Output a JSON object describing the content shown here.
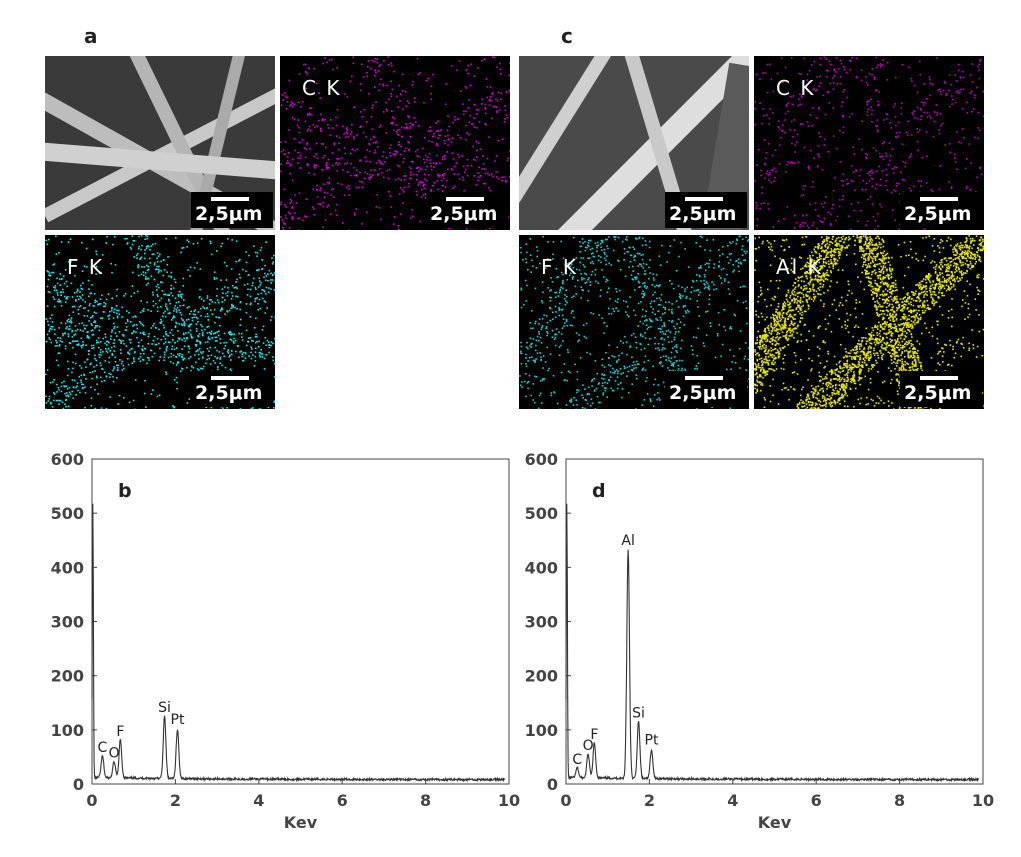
{
  "figure": {
    "panel_a": {
      "letter": "a"
    },
    "panel_c": {
      "letter": "c"
    },
    "scale_label": "2,5μm",
    "tiles_a": [
      {
        "kind": "sem",
        "label": ""
      },
      {
        "kind": "map",
        "label": "C K",
        "color": "#d400d4"
      },
      {
        "kind": "map",
        "label": "F K",
        "color": "#19e6e6"
      }
    ],
    "tiles_c": [
      {
        "kind": "sem",
        "label": ""
      },
      {
        "kind": "map",
        "label": "C K",
        "color": "#c000c0"
      },
      {
        "kind": "map",
        "label": "F K",
        "color": "#19d0d0"
      },
      {
        "kind": "map",
        "label": "Al K",
        "color": "#e6e60a"
      }
    ]
  },
  "chart_data": [
    {
      "type": "line",
      "panel": "b",
      "xlabel": "Kev",
      "ylabel": "",
      "xlim": [
        0,
        10
      ],
      "ylim": [
        0,
        600
      ],
      "xticks": [
        0,
        2,
        4,
        6,
        8,
        10
      ],
      "yticks": [
        0,
        100,
        200,
        300,
        400,
        500,
        600
      ],
      "line_color": "#333333",
      "peaks": [
        {
          "label": "C",
          "x": 0.25,
          "y": 48
        },
        {
          "label": "O",
          "x": 0.53,
          "y": 38
        },
        {
          "label": "F",
          "x": 0.68,
          "y": 78
        },
        {
          "label": "Si",
          "x": 1.74,
          "y": 122
        },
        {
          "label": "Pt",
          "x": 2.05,
          "y": 100
        }
      ],
      "baseline_peak": {
        "x": 0.02,
        "y": 505
      }
    },
    {
      "type": "line",
      "panel": "d",
      "xlabel": "Kev",
      "ylabel": "",
      "xlim": [
        0,
        10
      ],
      "ylim": [
        0,
        600
      ],
      "xticks": [
        0,
        2,
        4,
        6,
        8,
        10
      ],
      "yticks": [
        0,
        100,
        200,
        300,
        400,
        500,
        600
      ],
      "line_color": "#333333",
      "peaks": [
        {
          "label": "C",
          "x": 0.27,
          "y": 26
        },
        {
          "label": "O",
          "x": 0.53,
          "y": 52
        },
        {
          "label": "F",
          "x": 0.68,
          "y": 72
        },
        {
          "label": "Al",
          "x": 1.49,
          "y": 430
        },
        {
          "label": "Si",
          "x": 1.74,
          "y": 112
        },
        {
          "label": "Pt",
          "x": 2.05,
          "y": 62
        }
      ],
      "baseline_peak": {
        "x": 0.02,
        "y": 505
      }
    }
  ]
}
